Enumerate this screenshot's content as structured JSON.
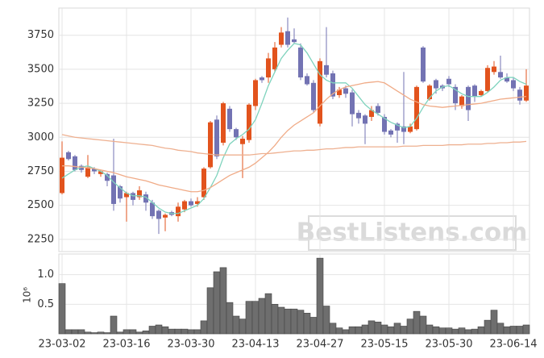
{
  "chart_data": [
    {
      "type": "candlestick",
      "watermark": "BestListens.com",
      "up_color": "#e2531d",
      "down_color": "#7373b3",
      "open": [
        2590,
        2890,
        2860,
        2790,
        2710,
        2770,
        2730,
        2730,
        2720,
        2640,
        2560,
        2590,
        2560,
        2580,
        2520,
        2460,
        2410,
        2450,
        2420,
        2470,
        2530,
        2510,
        2560,
        2780,
        3130,
        2960,
        3210,
        3060,
        2950,
        2980,
        3230,
        3440,
        3440,
        3500,
        3680,
        3780,
        3720,
        3660,
        3450,
        3400,
        3100,
        3530,
        3470,
        3310,
        3360,
        3330,
        3180,
        3160,
        3150,
        3230,
        3150,
        3050,
        3100,
        3080,
        3040,
        3060,
        3660,
        3280,
        3420,
        3380,
        3430,
        3370,
        3230,
        3370,
        3380,
        3310,
        3340,
        3480,
        3480,
        3440,
        3420,
        3350,
        3270
      ],
      "high": [
        2970,
        2900,
        2870,
        2800,
        2870,
        2780,
        2760,
        2740,
        2990,
        2650,
        2600,
        2600,
        2640,
        2600,
        2540,
        2470,
        2440,
        2460,
        2520,
        2540,
        2550,
        2560,
        2780,
        3120,
        3160,
        3260,
        3230,
        3070,
        3010,
        3250,
        3430,
        3450,
        3620,
        3700,
        3810,
        3880,
        3800,
        3690,
        3470,
        3420,
        3580,
        3810,
        3490,
        3370,
        3380,
        3350,
        3200,
        3170,
        3230,
        3250,
        3170,
        3060,
        3110,
        3480,
        3100,
        3380,
        3670,
        3390,
        3430,
        3390,
        3450,
        3390,
        3310,
        3380,
        3390,
        3350,
        3530,
        3560,
        3600,
        3470,
        3440,
        3370,
        3500
      ],
      "low": [
        2580,
        2830,
        2750,
        2740,
        2700,
        2730,
        2710,
        2640,
        2460,
        2520,
        2380,
        2500,
        2540,
        2460,
        2400,
        2290,
        2310,
        2420,
        2380,
        2450,
        2490,
        2490,
        2540,
        2770,
        2840,
        2940,
        3040,
        2980,
        2700,
        2960,
        3200,
        3400,
        3400,
        3480,
        3660,
        3660,
        3690,
        3420,
        3380,
        3180,
        3080,
        3440,
        3280,
        3290,
        3290,
        3080,
        3100,
        2950,
        3120,
        3160,
        3020,
        3000,
        2960,
        2950,
        3030,
        3050,
        3400,
        3270,
        3320,
        3340,
        3370,
        3200,
        3210,
        3120,
        3260,
        3300,
        3330,
        3460,
        3430,
        3400,
        3340,
        3240,
        3260
      ],
      "close": [
        2850,
        2840,
        2760,
        2760,
        2780,
        2750,
        2750,
        2680,
        2510,
        2550,
        2590,
        2540,
        2610,
        2520,
        2420,
        2400,
        2430,
        2430,
        2490,
        2530,
        2500,
        2530,
        2770,
        3110,
        2860,
        3250,
        3060,
        3000,
        2990,
        3240,
        3420,
        3420,
        3580,
        3660,
        3770,
        3680,
        3700,
        3440,
        3390,
        3200,
        3560,
        3460,
        3300,
        3350,
        3320,
        3170,
        3140,
        3100,
        3200,
        3180,
        3040,
        3020,
        3050,
        3040,
        3080,
        3370,
        3410,
        3380,
        3360,
        3360,
        3390,
        3250,
        3300,
        3200,
        3300,
        3340,
        3510,
        3520,
        3440,
        3410,
        3360,
        3270,
        3380
      ],
      "lines": [
        {
          "color": "#7fd3bd",
          "values": [
            2700,
            2730,
            2760,
            2780,
            2790,
            2770,
            2750,
            2720,
            2670,
            2630,
            2590,
            2570,
            2570,
            2560,
            2520,
            2480,
            2450,
            2440,
            2440,
            2460,
            2480,
            2500,
            2550,
            2630,
            2720,
            2850,
            2950,
            2990,
            3020,
            3060,
            3130,
            3250,
            3380,
            3480,
            3580,
            3640,
            3690,
            3680,
            3620,
            3540,
            3460,
            3420,
            3400,
            3400,
            3400,
            3360,
            3300,
            3240,
            3200,
            3170,
            3140,
            3110,
            3090,
            3070,
            3080,
            3140,
            3220,
            3290,
            3340,
            3370,
            3380,
            3350,
            3320,
            3300,
            3300,
            3300,
            3330,
            3370,
            3420,
            3440,
            3440,
            3410,
            3390
          ]
        },
        {
          "color": "#f0ab87",
          "values": [
            2790,
            2790,
            2785,
            2780,
            2775,
            2770,
            2760,
            2750,
            2740,
            2725,
            2710,
            2700,
            2690,
            2680,
            2665,
            2650,
            2640,
            2630,
            2620,
            2610,
            2600,
            2600,
            2610,
            2630,
            2660,
            2690,
            2720,
            2740,
            2760,
            2780,
            2810,
            2850,
            2890,
            2940,
            3000,
            3050,
            3090,
            3120,
            3150,
            3180,
            3230,
            3280,
            3320,
            3350,
            3370,
            3380,
            3390,
            3400,
            3405,
            3410,
            3400,
            3370,
            3340,
            3310,
            3280,
            3260,
            3240,
            3230,
            3225,
            3220,
            3225,
            3230,
            3235,
            3240,
            3245,
            3250,
            3260,
            3270,
            3280,
            3285,
            3290,
            3295,
            3300
          ]
        },
        {
          "color": "#eeb090",
          "values": [
            3020,
            3010,
            3000,
            2995,
            2990,
            2985,
            2980,
            2975,
            2970,
            2965,
            2960,
            2955,
            2950,
            2945,
            2940,
            2930,
            2920,
            2915,
            2905,
            2900,
            2895,
            2885,
            2880,
            2875,
            2870,
            2870,
            2870,
            2870,
            2870,
            2870,
            2875,
            2880,
            2880,
            2885,
            2890,
            2895,
            2900,
            2900,
            2905,
            2905,
            2910,
            2915,
            2915,
            2920,
            2925,
            2925,
            2930,
            2930,
            2930,
            2930,
            2930,
            2930,
            2930,
            2935,
            2935,
            2935,
            2940,
            2940,
            2940,
            2940,
            2945,
            2945,
            2945,
            2950,
            2950,
            2950,
            2955,
            2955,
            2960,
            2960,
            2965,
            2965,
            2970
          ]
        }
      ],
      "ylim": [
        2160,
        3950
      ],
      "yticks": [
        2250,
        2500,
        2750,
        3000,
        3250,
        3500,
        3750
      ],
      "grid": true
    },
    {
      "type": "bar",
      "ylabel": "10⁶",
      "color": "#6e6e6e",
      "categories": [
        "23-03-02",
        null,
        null,
        null,
        null,
        null,
        null,
        null,
        null,
        null,
        "23-03-16",
        null,
        null,
        null,
        null,
        null,
        null,
        null,
        null,
        null,
        "23-03-30",
        null,
        null,
        null,
        null,
        null,
        null,
        null,
        null,
        null,
        "23-04-13",
        null,
        null,
        null,
        null,
        null,
        null,
        null,
        null,
        null,
        "23-04-27",
        null,
        null,
        null,
        null,
        null,
        null,
        null,
        null,
        null,
        "23-05-15",
        null,
        null,
        null,
        null,
        null,
        null,
        null,
        null,
        null,
        "23-05-30",
        null,
        null,
        null,
        null,
        null,
        null,
        null,
        null,
        null,
        "23-06-14",
        null,
        null
      ],
      "values": [
        0.85,
        0.07,
        0.07,
        0.07,
        0.03,
        0.02,
        0.03,
        0.02,
        0.3,
        0.03,
        0.07,
        0.07,
        0.03,
        0.05,
        0.13,
        0.15,
        0.12,
        0.08,
        0.08,
        0.08,
        0.07,
        0.07,
        0.22,
        0.78,
        1.05,
        1.12,
        0.53,
        0.3,
        0.25,
        0.55,
        0.55,
        0.6,
        0.68,
        0.5,
        0.45,
        0.42,
        0.42,
        0.4,
        0.35,
        0.28,
        1.28,
        0.47,
        0.18,
        0.1,
        0.07,
        0.12,
        0.12,
        0.15,
        0.22,
        0.2,
        0.15,
        0.12,
        0.18,
        0.13,
        0.25,
        0.38,
        0.3,
        0.15,
        0.12,
        0.1,
        0.1,
        0.08,
        0.1,
        0.07,
        0.08,
        0.12,
        0.23,
        0.4,
        0.18,
        0.12,
        0.13,
        0.13,
        0.15
      ],
      "ylim": [
        0,
        1.35
      ],
      "yticks": [
        0.5,
        {
          "value": 1,
          "label": "1.0"
        }
      ],
      "grid": true
    }
  ]
}
